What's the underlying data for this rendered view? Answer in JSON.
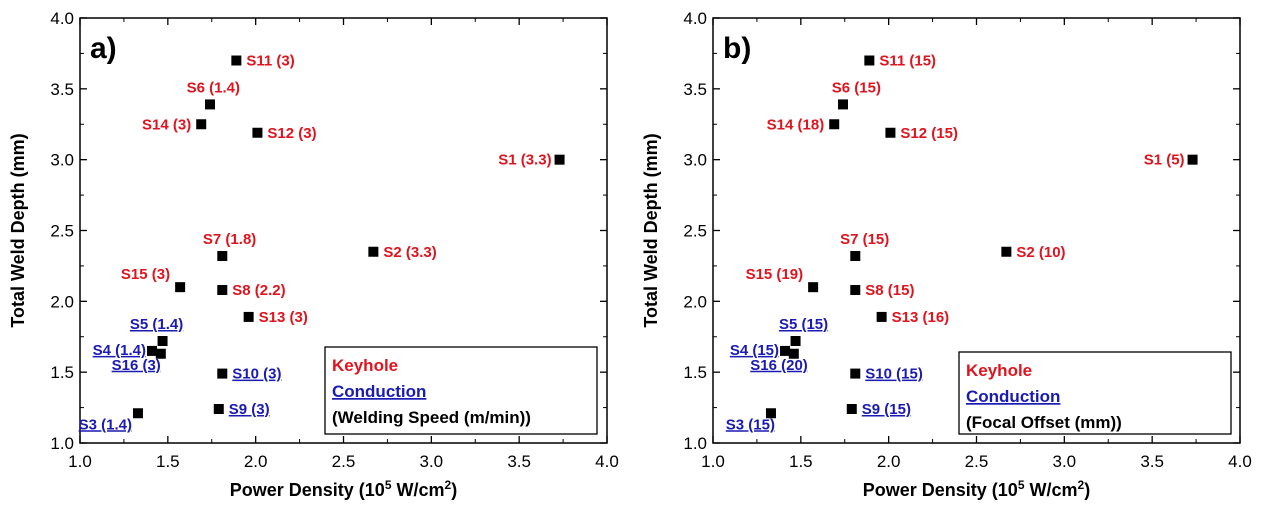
{
  "colors": {
    "keyhole": "#e0141e",
    "conduction": "#1a1ab4",
    "marker": "#000000",
    "axis": "#000000"
  },
  "chart_data": [
    {
      "type": "scatter",
      "panel_label": "a)",
      "xlabel": "Power Density (10",
      "xlabel_sup": "5",
      "xlabel_suffix": " W/cm",
      "xlabel_sup2": "2",
      "xlabel_close": ")",
      "ylabel": "Total Weld Depth (mm)",
      "xlim": [
        1.0,
        4.0
      ],
      "ylim": [
        1.0,
        4.0
      ],
      "xticks": [
        "1.0",
        "1.5",
        "2.0",
        "2.5",
        "3.0",
        "3.5",
        "4.0"
      ],
      "yticks": [
        "1.0",
        "1.5",
        "2.0",
        "2.5",
        "3.0",
        "3.5",
        "4.0"
      ],
      "legend": {
        "placement": "bottom-right",
        "keyhole": "Keyhole",
        "conduction": "Conduction",
        "note": "(Welding Speed (m/min))"
      },
      "points": [
        {
          "label": "S1 (3.3)",
          "x": 3.73,
          "y": 3.0,
          "mode": "keyhole"
        },
        {
          "label": "S2 (3.3)",
          "x": 2.67,
          "y": 2.35,
          "mode": "keyhole"
        },
        {
          "label": "S3 (1.4)",
          "x": 1.33,
          "y": 1.21,
          "mode": "conduction"
        },
        {
          "label": "S4 (1.4)",
          "x": 1.41,
          "y": 1.65,
          "mode": "conduction"
        },
        {
          "label": "S5 (1.4)",
          "x": 1.47,
          "y": 1.72,
          "mode": "conduction"
        },
        {
          "label": "S6 (1.4)",
          "x": 1.74,
          "y": 3.39,
          "mode": "keyhole"
        },
        {
          "label": "S7 (1.8)",
          "x": 1.81,
          "y": 2.32,
          "mode": "keyhole"
        },
        {
          "label": "S8 (2.2)",
          "x": 1.81,
          "y": 2.08,
          "mode": "keyhole"
        },
        {
          "label": "S9 (3)",
          "x": 1.79,
          "y": 1.24,
          "mode": "conduction"
        },
        {
          "label": "S10 (3)",
          "x": 1.81,
          "y": 1.49,
          "mode": "conduction"
        },
        {
          "label": "S11 (3)",
          "x": 1.89,
          "y": 3.7,
          "mode": "keyhole"
        },
        {
          "label": "S12 (3)",
          "x": 2.01,
          "y": 3.19,
          "mode": "keyhole"
        },
        {
          "label": "S13 (3)",
          "x": 1.96,
          "y": 1.89,
          "mode": "keyhole"
        },
        {
          "label": "S14 (3)",
          "x": 1.69,
          "y": 3.25,
          "mode": "keyhole"
        },
        {
          "label": "S15 (3)",
          "x": 1.57,
          "y": 2.1,
          "mode": "keyhole"
        },
        {
          "label": "S16 (3)",
          "x": 1.46,
          "y": 1.63,
          "mode": "conduction"
        }
      ]
    },
    {
      "type": "scatter",
      "panel_label": "b)",
      "xlabel": "Power Density (10",
      "xlabel_sup": "5",
      "xlabel_suffix": " W/cm",
      "xlabel_sup2": "2",
      "xlabel_close": ")",
      "ylabel": "Total Weld Depth (mm)",
      "xlim": [
        1.0,
        4.0
      ],
      "ylim": [
        1.0,
        4.0
      ],
      "xticks": [
        "1.0",
        "1.5",
        "2.0",
        "2.5",
        "3.0",
        "3.5",
        "4.0"
      ],
      "yticks": [
        "1.0",
        "1.5",
        "2.0",
        "2.5",
        "3.0",
        "3.5",
        "4.0"
      ],
      "legend": {
        "placement": "bottom-right",
        "keyhole": "Keyhole",
        "conduction": "Conduction",
        "note": "(Focal Offset (mm))"
      },
      "points": [
        {
          "label": "S1 (5)",
          "x": 3.73,
          "y": 3.0,
          "mode": "keyhole"
        },
        {
          "label": "S2 (10)",
          "x": 2.67,
          "y": 2.35,
          "mode": "keyhole"
        },
        {
          "label": "S3 (15)",
          "x": 1.33,
          "y": 1.21,
          "mode": "conduction"
        },
        {
          "label": "S4 (15)",
          "x": 1.41,
          "y": 1.65,
          "mode": "conduction"
        },
        {
          "label": "S5 (15)",
          "x": 1.47,
          "y": 1.72,
          "mode": "conduction"
        },
        {
          "label": "S6 (15)",
          "x": 1.74,
          "y": 3.39,
          "mode": "keyhole"
        },
        {
          "label": "S7 (15)",
          "x": 1.81,
          "y": 2.32,
          "mode": "keyhole"
        },
        {
          "label": "S8 (15)",
          "x": 1.81,
          "y": 2.08,
          "mode": "keyhole"
        },
        {
          "label": "S9 (15)",
          "x": 1.79,
          "y": 1.24,
          "mode": "conduction"
        },
        {
          "label": "S10 (15)",
          "x": 1.81,
          "y": 1.49,
          "mode": "conduction"
        },
        {
          "label": "S11 (15)",
          "x": 1.89,
          "y": 3.7,
          "mode": "keyhole"
        },
        {
          "label": "S12 (15)",
          "x": 2.01,
          "y": 3.19,
          "mode": "keyhole"
        },
        {
          "label": "S13 (16)",
          "x": 1.96,
          "y": 1.89,
          "mode": "keyhole"
        },
        {
          "label": "S14 (18)",
          "x": 1.69,
          "y": 3.25,
          "mode": "keyhole"
        },
        {
          "label": "S15 (19)",
          "x": 1.57,
          "y": 2.1,
          "mode": "keyhole"
        },
        {
          "label": "S16 (20)",
          "x": 1.46,
          "y": 1.63,
          "mode": "conduction"
        }
      ]
    }
  ]
}
